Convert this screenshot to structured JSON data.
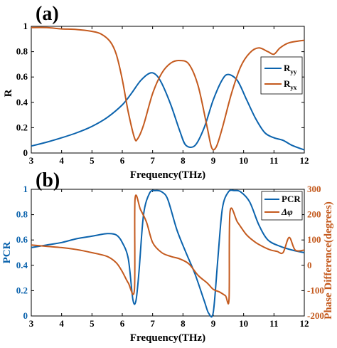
{
  "chart_data": [
    {
      "type": "line",
      "panel_label": "(a)",
      "xlabel": "Frequency(THz)",
      "ylabel": "R",
      "xlim": [
        3,
        12
      ],
      "ylim": [
        0,
        1
      ],
      "xticks": [
        "3",
        "4",
        "5",
        "6",
        "7",
        "8",
        "9",
        "10",
        "11",
        "12"
      ],
      "yticks": [
        "0",
        "0.2",
        "0.4",
        "0.6",
        "0.8",
        "1"
      ],
      "legend_position": "right",
      "series": [
        {
          "name": "R",
          "sub": "yy",
          "color": "#0b63ad",
          "x": [
            3,
            3.5,
            4,
            4.5,
            5,
            5.5,
            6,
            6.3,
            6.6,
            6.9,
            7.1,
            7.3,
            7.6,
            7.9,
            8.1,
            8.4,
            8.7,
            9.0,
            9.3,
            9.5,
            9.8,
            10.1,
            10.4,
            10.7,
            11.0,
            11.3,
            11.6,
            12.0
          ],
          "y": [
            0.055,
            0.085,
            0.12,
            0.16,
            0.21,
            0.28,
            0.38,
            0.47,
            0.57,
            0.63,
            0.62,
            0.55,
            0.38,
            0.17,
            0.06,
            0.06,
            0.2,
            0.42,
            0.58,
            0.62,
            0.57,
            0.42,
            0.27,
            0.16,
            0.12,
            0.1,
            0.06,
            0.025
          ]
        },
        {
          "name": "R",
          "sub": "yx",
          "color": "#c45a1e",
          "x": [
            3,
            3.5,
            4,
            4.5,
            5,
            5.3,
            5.6,
            5.8,
            6.0,
            6.2,
            6.4,
            6.5,
            6.7,
            7.0,
            7.3,
            7.6,
            7.9,
            8.2,
            8.5,
            8.8,
            8.95,
            9.1,
            9.3,
            9.6,
            9.9,
            10.2,
            10.5,
            10.8,
            11.0,
            11.2,
            11.5,
            12.0
          ],
          "y": [
            0.99,
            0.99,
            0.98,
            0.975,
            0.96,
            0.94,
            0.88,
            0.78,
            0.58,
            0.32,
            0.12,
            0.11,
            0.22,
            0.47,
            0.63,
            0.71,
            0.73,
            0.7,
            0.53,
            0.2,
            0.04,
            0.05,
            0.2,
            0.47,
            0.68,
            0.79,
            0.83,
            0.8,
            0.78,
            0.83,
            0.87,
            0.89
          ]
        }
      ]
    },
    {
      "type": "line",
      "panel_label": "(b)",
      "xlabel": "Frequency(THz)",
      "ylabel": "PCR",
      "y2label": "Phase Difference(degrees)",
      "xlim": [
        3,
        12
      ],
      "ylim": [
        0,
        1
      ],
      "y2lim": [
        -200,
        300
      ],
      "xticks": [
        "3",
        "4",
        "5",
        "6",
        "7",
        "8",
        "9",
        "10",
        "11",
        "12"
      ],
      "yticks": [
        "0",
        "0.2",
        "0.4",
        "0.6",
        "0.8",
        "1"
      ],
      "y2ticks": [
        "-200",
        "-100",
        "0",
        "100",
        "200",
        "300"
      ],
      "legend_position": "top-right",
      "series": [
        {
          "name": "PCR",
          "axis": "left",
          "color": "#0b63ad",
          "x": [
            3,
            3.5,
            4,
            4.5,
            5,
            5.5,
            5.8,
            6.0,
            6.2,
            6.35,
            6.45,
            6.55,
            6.7,
            6.9,
            7.1,
            7.3,
            7.5,
            7.8,
            8.1,
            8.4,
            8.7,
            8.85,
            9.0,
            9.15,
            9.3,
            9.5,
            9.7,
            9.9,
            10.2,
            10.5,
            10.8,
            11.2,
            11.6,
            12.0
          ],
          "y": [
            0.54,
            0.56,
            0.58,
            0.61,
            0.63,
            0.65,
            0.64,
            0.58,
            0.45,
            0.13,
            0.12,
            0.35,
            0.8,
            0.97,
            0.99,
            0.98,
            0.92,
            0.68,
            0.5,
            0.33,
            0.12,
            0.02,
            0.03,
            0.45,
            0.85,
            0.98,
            0.99,
            0.98,
            0.9,
            0.72,
            0.6,
            0.55,
            0.52,
            0.5
          ]
        },
        {
          "name": "Δφ",
          "axis": "right",
          "color": "#c45a1e",
          "x": [
            3,
            3.5,
            4,
            4.5,
            5,
            5.5,
            5.8,
            6.0,
            6.2,
            6.4,
            6.42,
            6.6,
            6.8,
            7.0,
            7.3,
            7.6,
            7.9,
            8.2,
            8.5,
            8.8,
            9.0,
            9.2,
            9.4,
            9.52,
            9.55,
            9.8,
            10.1,
            10.4,
            10.7,
            10.9,
            11.1,
            11.3,
            11.5,
            11.7,
            12.0
          ],
          "y": [
            80,
            75,
            70,
            62,
            50,
            35,
            10,
            -25,
            -70,
            -95,
            260,
            220,
            170,
            90,
            50,
            35,
            25,
            5,
            -40,
            -70,
            -95,
            -105,
            -120,
            -130,
            210,
            170,
            120,
            90,
            70,
            60,
            55,
            50,
            110,
            60,
            60
          ]
        }
      ]
    }
  ]
}
